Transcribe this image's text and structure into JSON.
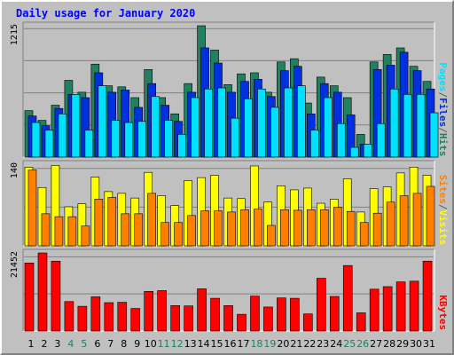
{
  "title": "Daily usage for January 2020",
  "chart_data": {
    "type": "bar",
    "title": "Daily usage for January 2020",
    "categories": [
      "1",
      "2",
      "3",
      "4",
      "5",
      "6",
      "7",
      "8",
      "9",
      "10",
      "11",
      "12",
      "13",
      "14",
      "15",
      "16",
      "17",
      "18",
      "19",
      "20",
      "21",
      "22",
      "23",
      "24",
      "25",
      "26",
      "27",
      "28",
      "29",
      "30",
      "31"
    ],
    "weekend_days": [
      "4",
      "5",
      "11",
      "12",
      "18",
      "19",
      "25",
      "26"
    ],
    "panels": [
      {
        "id": "hits",
        "ymax": 1215,
        "ymax_label": "1215",
        "legend": [
          "Pages",
          "/",
          "Files",
          "/",
          "Hits"
        ],
        "legend_colors": [
          "#00e0ff",
          "#606060",
          "#0030e0",
          "#606060",
          "#208060"
        ],
        "series": [
          {
            "name": "Hits",
            "color": "#208060",
            "values": [
              430,
              340,
              480,
              710,
              600,
              860,
              660,
              650,
              550,
              810,
              550,
              400,
              680,
              1215,
              990,
              670,
              770,
              780,
              600,
              880,
              910,
              500,
              740,
              660,
              550,
              210,
              880,
              950,
              1010,
              840,
              700
            ]
          },
          {
            "name": "Files",
            "color": "#0030e0",
            "values": [
              380,
              290,
              450,
              580,
              550,
              780,
              600,
              620,
              460,
              680,
              480,
              330,
              600,
              1010,
              870,
              600,
              700,
              720,
              560,
              800,
              840,
              400,
              680,
              600,
              390,
              120,
              810,
              850,
              970,
              800,
              630
            ]
          },
          {
            "name": "Pages",
            "color": "#00e0ff",
            "values": [
              320,
              250,
              400,
              580,
              250,
              660,
              340,
              320,
              330,
              560,
              340,
              210,
              550,
              630,
              640,
              360,
              540,
              630,
              460,
              640,
              660,
              250,
              550,
              310,
              90,
              120,
              310,
              630,
              580,
              580,
              410
            ]
          }
        ]
      },
      {
        "id": "visits",
        "ymax": 140,
        "ymax_label": "140",
        "legend": [
          "Sites",
          "/",
          "Visits"
        ],
        "legend_colors": [
          "#ff8000",
          "#606060",
          "#ffff00"
        ],
        "series": [
          {
            "name": "Visits",
            "color": "#ffff00",
            "values": [
              135,
              100,
              138,
              67,
              72,
              118,
              93,
              90,
              82,
              126,
              86,
              69,
              112,
              117,
              121,
              82,
              81,
              137,
              75,
              103,
              96,
              99,
              73,
              80,
              115,
              58,
              98,
              101,
              125,
              135,
              121
            ]
          },
          {
            "name": "Sites",
            "color": "#ff8000",
            "values": [
              130,
              55,
              50,
              50,
              34,
              80,
              83,
              55,
              55,
              90,
              40,
              40,
              52,
              60,
              60,
              58,
              62,
              63,
              35,
              62,
              61,
              62,
              62,
              66,
              59,
              40,
              56,
              75,
              86,
              90,
              102
            ]
          }
        ]
      },
      {
        "id": "kbytes",
        "ymax": 21452,
        "ymax_label": "21452",
        "legend": [
          "KBytes"
        ],
        "legend_colors": [
          "#ff0000"
        ],
        "series": [
          {
            "name": "KBytes",
            "color": "#ff0000",
            "values": [
              18700,
              21452,
              19200,
              8100,
              6800,
              9400,
              7800,
              7900,
              6200,
              10900,
              11100,
              7000,
              6900,
              11600,
              9000,
              7000,
              4600,
              9600,
              6600,
              9100,
              9000,
              4700,
              14500,
              9500,
              18000,
              5000,
              11500,
              12200,
              13500,
              13700,
              19200
            ]
          }
        ]
      }
    ]
  }
}
